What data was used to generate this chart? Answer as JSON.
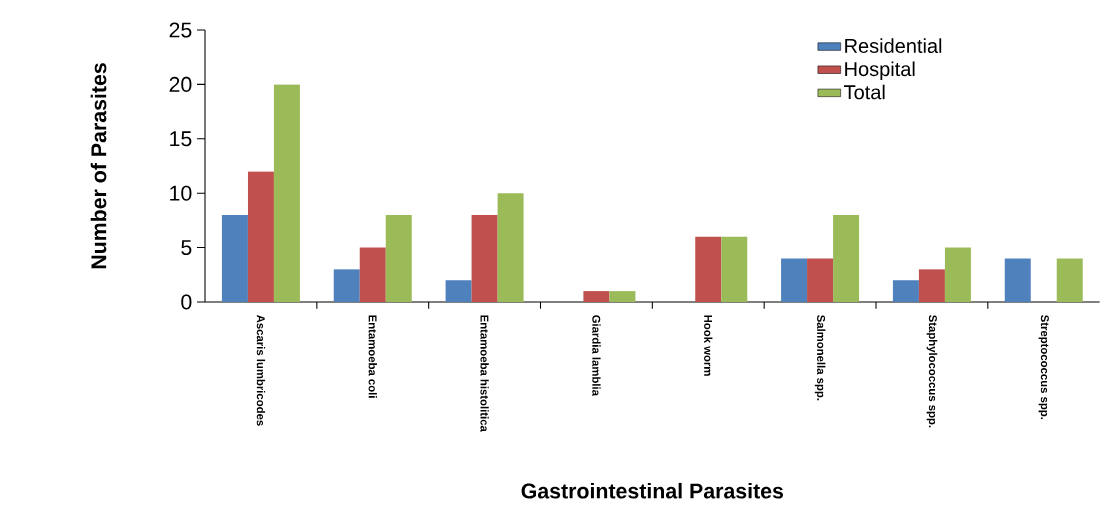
{
  "chart_data": {
    "type": "bar",
    "xlabel": "Gastrointestinal Parasites",
    "ylabel": "Number of Parasites",
    "categories": [
      "Ascaris lumbricodes",
      "Entamoeba coli",
      "Entamoeba histolitica",
      "Giardia lamblia",
      "Hook worm",
      "Salmonella spp.",
      "Staphylococcus spp.",
      "Streptococcus spp."
    ],
    "series": [
      {
        "name": "Residential",
        "color": "#4f81bd",
        "values": [
          8,
          3,
          2,
          0,
          0,
          4,
          2,
          4
        ]
      },
      {
        "name": "Hospital",
        "color": "#c0504d",
        "values": [
          12,
          5,
          8,
          1,
          6,
          4,
          3,
          0
        ]
      },
      {
        "name": "Total",
        "color": "#9bbb59",
        "values": [
          20,
          8,
          10,
          1,
          6,
          8,
          5,
          4
        ]
      }
    ],
    "ylim": [
      0,
      25
    ],
    "yticks": [
      0,
      5,
      10,
      15,
      20,
      25
    ],
    "grid": false,
    "legend": "top right"
  }
}
